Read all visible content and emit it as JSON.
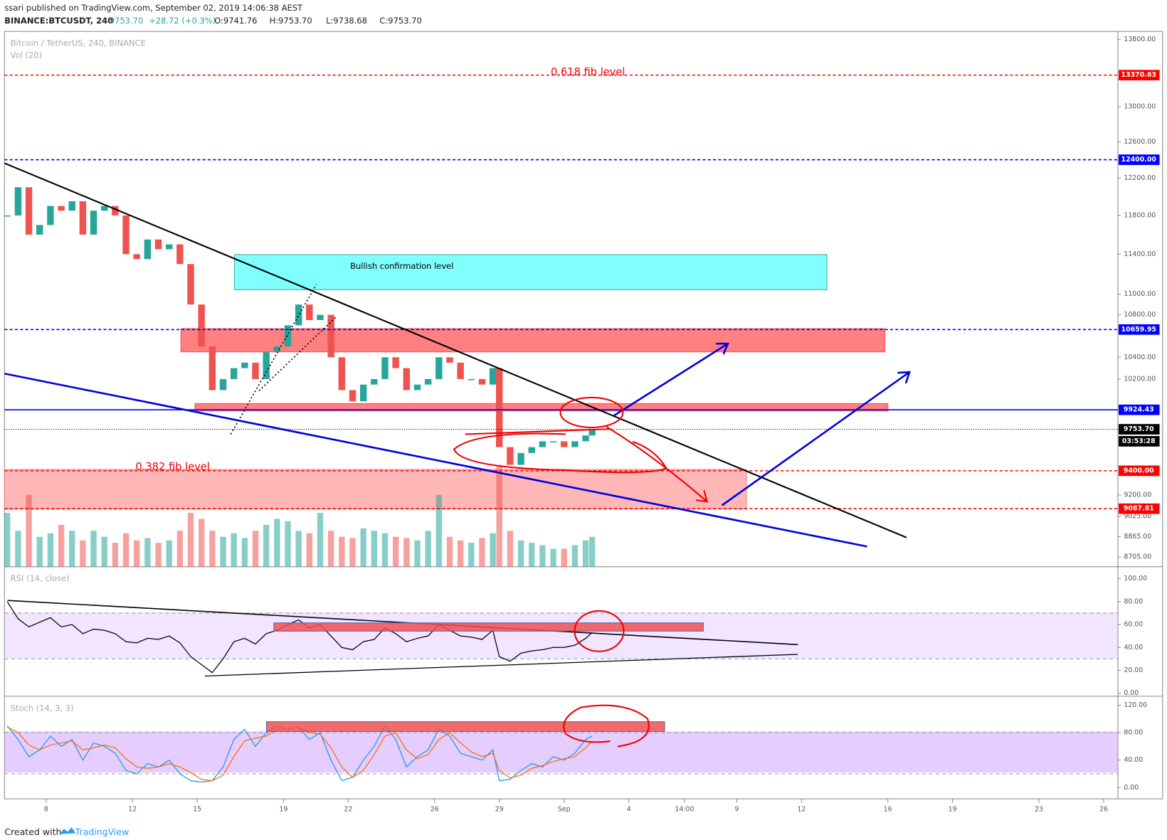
{
  "header": {
    "publisher": "ssari published on TradingView.com, September 02, 2019 14:06:38 AEST",
    "symbol": "BINANCE:BTCUSDT, 240",
    "price": "9753.70",
    "change": "+28.72 (+0.3%)",
    "open": "O:9741.76",
    "high": "H:9753.70",
    "low": "L:9738.68",
    "close": "C:9753.70"
  },
  "footer": {
    "created": "Created with",
    "brand": "TradingView"
  },
  "chart_data": [
    {
      "type": "candlestick",
      "title": "Bitcoin / TetherUS, 240, BINANCE",
      "volume_label": "Vol (20)",
      "log": true,
      "up_color": "#26a69a",
      "down_color": "#ef5350",
      "x": [
        6.2,
        6.7,
        7.2,
        7.7,
        8.2,
        8.7,
        9.2,
        9.7,
        10.2,
        10.7,
        11.2,
        11.7,
        12.2,
        12.7,
        13.2,
        13.7,
        14.2,
        14.7,
        15.2,
        15.7,
        16.2,
        16.7,
        17.2,
        17.7,
        18.2,
        18.7,
        19.2,
        19.7,
        20.2,
        20.7,
        21.2,
        21.7,
        22.2,
        22.7,
        23.2,
        23.7,
        24.2,
        24.7,
        25.2,
        25.7,
        26.2,
        26.7,
        27.2,
        27.7,
        28.2,
        28.7,
        29.0,
        29.5,
        30.0,
        30.5,
        31.0,
        31.5,
        32.0,
        32.5,
        33.0,
        33.3
      ],
      "values": [
        11800,
        12100,
        11600,
        11700,
        11900,
        11850,
        11950,
        11600,
        11850,
        11900,
        11800,
        11400,
        11350,
        11550,
        11450,
        11500,
        11300,
        10900,
        10500,
        10100,
        10200,
        10300,
        10350,
        10200,
        10450,
        10500,
        10700,
        10900,
        10750,
        10800,
        10400,
        10100,
        10000,
        10150,
        10200,
        10400,
        10300,
        10100,
        10150,
        10200,
        10400,
        10350,
        10200,
        10200,
        10150,
        10300,
        9600,
        9450,
        9550,
        9600,
        9650,
        9650,
        9600,
        9650,
        9700,
        9753.7
      ],
      "volume": [
        45,
        30,
        60,
        25,
        28,
        35,
        30,
        22,
        30,
        25,
        20,
        28,
        22,
        24,
        20,
        22,
        30,
        45,
        40,
        30,
        25,
        28,
        24,
        30,
        35,
        40,
        38,
        30,
        28,
        45,
        30,
        25,
        24,
        32,
        30,
        28,
        25,
        24,
        22,
        30,
        60,
        25,
        22,
        20,
        24,
        28,
        85,
        30,
        22,
        20,
        18,
        15,
        15,
        18,
        22,
        25
      ],
      "volume_ylim": [
        0,
        100
      ],
      "xlim": [
        6.07,
        57.66
      ],
      "xticks": [
        8,
        12,
        15,
        19,
        22,
        26,
        29,
        {
          "value": 32,
          "label": "Sep"
        },
        {
          "value": 35,
          "label": "4"
        },
        {
          "value": 37.58,
          "label": "14:00"
        },
        {
          "value": 40,
          "label": "9"
        },
        {
          "value": 43,
          "label": "12"
        },
        {
          "value": 47,
          "label": "16"
        },
        {
          "value": 50,
          "label": "19"
        },
        {
          "value": 54,
          "label": "23"
        },
        {
          "value": 57,
          "label": "26"
        }
      ],
      "ylim": [
        8630,
        13901
      ],
      "yticks": [
        {
          "value": 13800,
          "label": "13800.00"
        },
        {
          "value": 13000,
          "label": "13000.00"
        },
        {
          "value": 12600,
          "label": "12600.00"
        },
        {
          "value": 12200,
          "label": "12200.00"
        },
        {
          "value": 11800,
          "label": "11800.00"
        },
        {
          "value": 11400,
          "label": "11400.00"
        },
        {
          "value": 11000,
          "label": "11000.00"
        },
        {
          "value": 10800,
          "label": "10800.00"
        },
        {
          "value": 10400,
          "label": "10400.00"
        },
        {
          "value": 10200,
          "label": "10200.00"
        },
        {
          "value": 9200,
          "label": "9200.00"
        },
        {
          "value": 9025,
          "label": "9025.00"
        },
        {
          "value": 8865,
          "label": "8865.00"
        },
        {
          "value": 8705,
          "label": "8705.00"
        }
      ],
      "price_lines": [
        {
          "value": 13370.63,
          "label": "13370.63",
          "color": "#ff0000",
          "style": "dashed"
        },
        {
          "value": 12400,
          "label": "12400.00",
          "color": "#0000ff",
          "style": "dashed"
        },
        {
          "value": 10659.95,
          "label": "10659.95",
          "color": "#0000ff",
          "style": "dashed"
        },
        {
          "value": 9924.43,
          "label": "9924.43",
          "color": "#0000ff",
          "style": "solid"
        },
        {
          "value": 9753.7,
          "label": "9753.70",
          "color": "#000000",
          "style": "dotted"
        },
        {
          "value": 9400,
          "label": "9400.00",
          "color": "#ff0000",
          "style": "dashed"
        },
        {
          "value": 9087.81,
          "label": "9087.81",
          "color": "#ff0000",
          "style": "dashed"
        }
      ],
      "countdown": "03:53:28",
      "annotations": [
        "0.618 fib level",
        "0.382 fib level",
        "Bullish confirmation level"
      ]
    },
    {
      "type": "line",
      "title": "RSI (14, close)",
      "color": "#000000",
      "values": [
        80,
        65,
        58,
        62,
        66,
        58,
        60,
        52,
        56,
        55,
        52,
        45,
        44,
        48,
        47,
        50,
        44,
        32,
        25,
        18,
        30,
        45,
        48,
        43,
        52,
        55,
        60,
        64,
        57,
        60,
        50,
        40,
        38,
        45,
        47,
        57,
        52,
        45,
        48,
        50,
        60,
        55,
        50,
        49,
        47,
        55,
        32,
        28,
        35,
        37,
        38,
        40,
        40,
        42,
        48,
        53
      ],
      "band": [
        30,
        70
      ],
      "ylim": [
        -2.6,
        109.8
      ],
      "yticks": [
        {
          "value": 100,
          "label": "100.00"
        },
        {
          "value": 80,
          "label": "80.00"
        },
        {
          "value": 60,
          "label": "60.00"
        },
        {
          "value": 40,
          "label": "40.00"
        },
        {
          "value": 20,
          "label": "20.00"
        },
        {
          "value": 0,
          "label": "0.00"
        }
      ]
    },
    {
      "type": "line",
      "title": "Stoch (14, 3, 3)",
      "series": [
        {
          "color": "#2196f3",
          "values": [
            90,
            70,
            45,
            55,
            75,
            60,
            70,
            40,
            65,
            60,
            50,
            25,
            20,
            35,
            30,
            40,
            20,
            10,
            8,
            10,
            30,
            70,
            85,
            60,
            80,
            90,
            85,
            88,
            70,
            80,
            40,
            10,
            15,
            40,
            60,
            90,
            70,
            30,
            45,
            55,
            85,
            75,
            50,
            45,
            40,
            55,
            10,
            12,
            25,
            35,
            30,
            45,
            40,
            50,
            70,
            75
          ]
        },
        {
          "color": "#ff6d00",
          "values": [
            88,
            80,
            62,
            55,
            62,
            65,
            68,
            55,
            58,
            62,
            58,
            42,
            30,
            28,
            30,
            35,
            30,
            22,
            12,
            10,
            18,
            45,
            68,
            72,
            75,
            85,
            86,
            88,
            80,
            78,
            58,
            30,
            15,
            25,
            48,
            75,
            80,
            55,
            42,
            48,
            70,
            80,
            65,
            52,
            45,
            50,
            25,
            14,
            18,
            28,
            32,
            38,
            42,
            45,
            58,
            68
          ]
        }
      ],
      "band": [
        20,
        80
      ],
      "ylim": [
        -16.4,
        130.9
      ],
      "yticks": [
        {
          "value": 120,
          "label": "120.00"
        },
        {
          "value": 80,
          "label": "80.00"
        },
        {
          "value": 40,
          "label": "40.00"
        },
        {
          "value": 0,
          "label": "0.00"
        }
      ]
    }
  ]
}
